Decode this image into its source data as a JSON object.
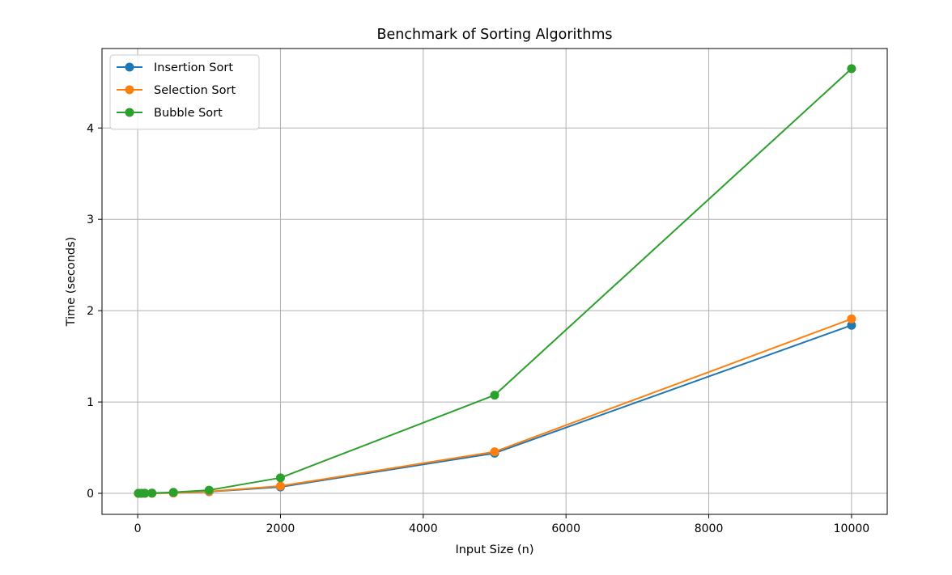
{
  "chart_data": {
    "type": "line",
    "title": "Benchmark of Sorting Algorithms",
    "xlabel": "Input Size (n)",
    "ylabel": "Time (seconds)",
    "xlim": [
      -500,
      10500
    ],
    "ylim": [
      -0.23,
      4.87
    ],
    "xticks": [
      0,
      2000,
      4000,
      6000,
      8000,
      10000
    ],
    "yticks": [
      0,
      1,
      2,
      3,
      4
    ],
    "grid": true,
    "legend_position": "top-left",
    "x": [
      10,
      50,
      100,
      200,
      500,
      1000,
      2000,
      5000,
      10000
    ],
    "series": [
      {
        "name": "Insertion Sort",
        "color": "#1f77b4",
        "values": [
          0.0,
          0.0,
          0.0,
          0.001,
          0.004,
          0.018,
          0.07,
          0.44,
          1.84
        ]
      },
      {
        "name": "Selection Sort",
        "color": "#ff7f0e",
        "values": [
          0.0,
          0.0,
          0.0,
          0.001,
          0.005,
          0.02,
          0.08,
          0.455,
          1.91
        ]
      },
      {
        "name": "Bubble Sort",
        "color": "#2ca02c",
        "values": [
          0.0,
          0.0,
          0.001,
          0.002,
          0.011,
          0.035,
          0.17,
          1.075,
          4.65
        ]
      }
    ]
  }
}
